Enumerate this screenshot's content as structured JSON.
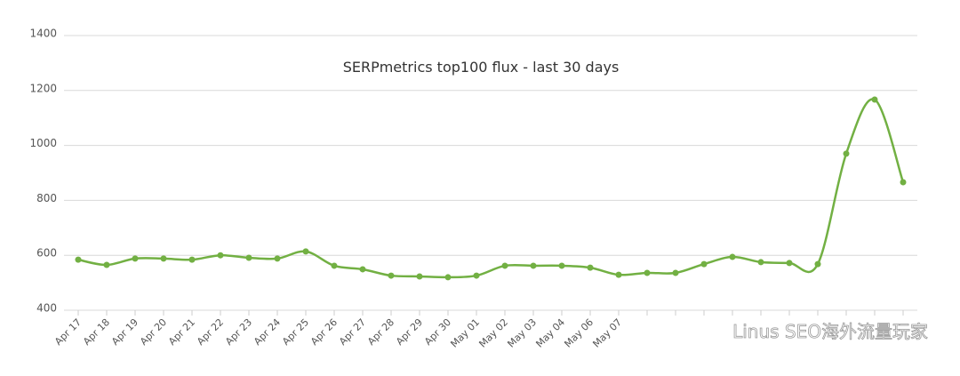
{
  "chart_data": {
    "type": "line",
    "title": "SERPmetrics top100 flux - last 30 days",
    "categories": [
      "Apr 17",
      "Apr 18",
      "Apr 19",
      "Apr 20",
      "Apr 21",
      "Apr 22",
      "Apr 23",
      "Apr 24",
      "Apr 25",
      "Apr 26",
      "Apr 27",
      "Apr 28",
      "Apr 29",
      "Apr 30",
      "May 01",
      "May 02",
      "May 03",
      "May 04",
      "May 06",
      "May 07",
      null,
      null,
      null,
      null,
      null,
      null,
      null,
      null,
      null,
      null
    ],
    "series": [
      {
        "name": "flux",
        "color": "#72b043",
        "values": [
          584,
          565,
          588,
          588,
          584,
          600,
          591,
          588,
          614,
          562,
          549,
          526,
          523,
          520,
          526,
          562,
          562,
          562,
          555,
          529,
          536,
          536,
          568,
          594,
          575,
          572,
          568,
          970,
          1167,
          866
        ]
      }
    ],
    "ylim": [
      400,
      1400
    ],
    "yticks": [
      400,
      600,
      800,
      1000,
      1200,
      1400
    ],
    "grid": true,
    "watermark": "Linus SEO海外流量玩家"
  }
}
